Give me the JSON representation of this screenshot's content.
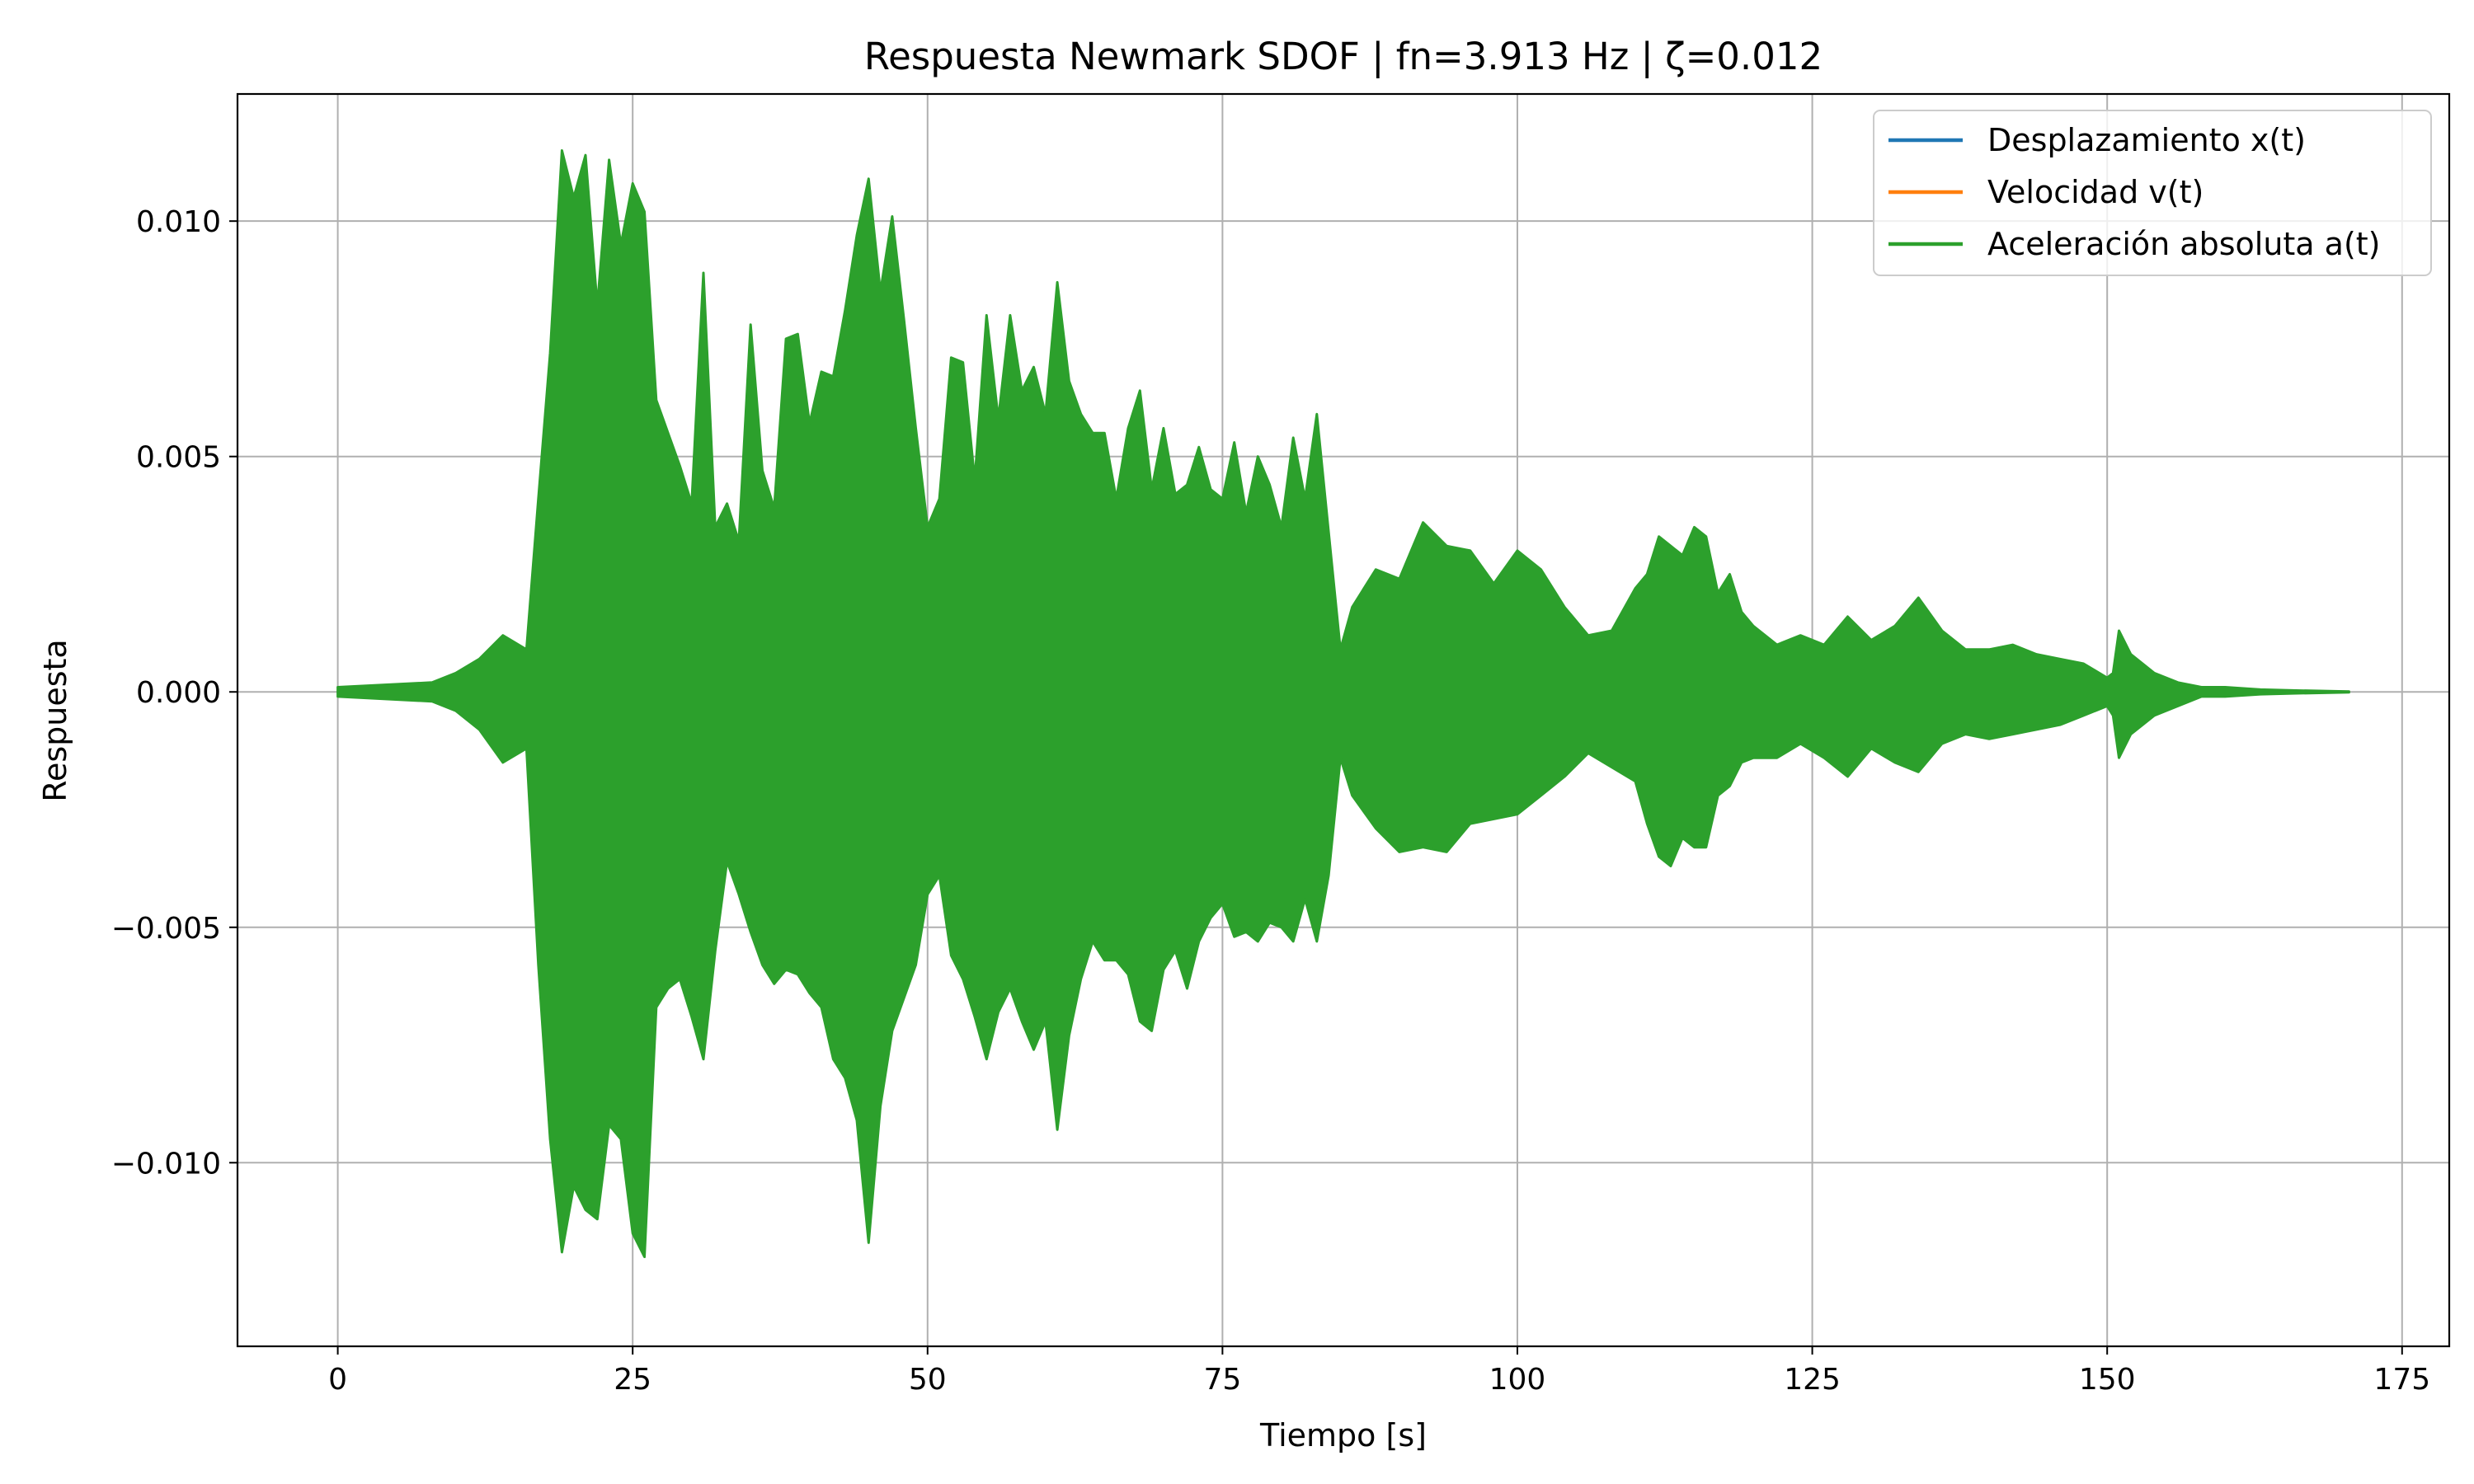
{
  "chart_data": {
    "type": "line",
    "title": "Respuesta Newmark SDOF | fn=3.913 Hz | ζ=0.012",
    "xlabel": "Tiempo [s]",
    "ylabel": "Respuesta",
    "xlim": [
      -8.5,
      179
    ],
    "ylim": [
      -0.0139,
      0.0127
    ],
    "grid": true,
    "legend_position": "upper right",
    "x_ticks": [
      0,
      25,
      50,
      75,
      100,
      125,
      150,
      175
    ],
    "x_tick_labels": [
      "0",
      "25",
      "50",
      "75",
      "100",
      "125",
      "150",
      "175"
    ],
    "y_ticks": [
      -0.01,
      -0.005,
      0.0,
      0.005,
      0.01
    ],
    "y_tick_labels": [
      "−0.010",
      "−0.005",
      "0.000",
      "0.005",
      "0.010"
    ],
    "series": [
      {
        "name": "Desplazamiento x(t)",
        "color": "#1f77b4",
        "visible_in_plot": false,
        "note_hidden": "",
        "x": [
          0,
          170.5
        ],
        "upper": [
          0.0,
          0.0
        ],
        "lower": [
          0.0,
          0.0
        ]
      },
      {
        "name": "Velocidad v(t)",
        "color": "#ff7f0e",
        "visible_in_plot": false,
        "x": [
          0,
          170.5
        ],
        "upper": [
          0.0,
          0.0
        ],
        "lower": [
          0.0,
          0.0
        ]
      },
      {
        "name": "Aceleración absoluta a(t)",
        "color": "#2ca02c",
        "visible_in_plot": true,
        "x": [
          0,
          8,
          10,
          12,
          14,
          16,
          17,
          18,
          19,
          20,
          21,
          22,
          23,
          24,
          25,
          26,
          27,
          28,
          29,
          30,
          31,
          32,
          33,
          34,
          35,
          36,
          37,
          38,
          39,
          40,
          41,
          42,
          43,
          44,
          45,
          46,
          47,
          48,
          49,
          50,
          51,
          52,
          53,
          54,
          55,
          56,
          57,
          58,
          59,
          60,
          61,
          62,
          63,
          64,
          65,
          66,
          67,
          68,
          69,
          70,
          71,
          72,
          73,
          74,
          75,
          76,
          77,
          78,
          79,
          80,
          81,
          82,
          83,
          84,
          85,
          86,
          88,
          90,
          92,
          94,
          96,
          98,
          100,
          102,
          104,
          106,
          108,
          110,
          111,
          112,
          113,
          114,
          115,
          116,
          117,
          118,
          119,
          120,
          122,
          124,
          126,
          128,
          130,
          132,
          134,
          136,
          138,
          140,
          142,
          144,
          146,
          148,
          150,
          150.5,
          151,
          152,
          154,
          156,
          158,
          160,
          163,
          166,
          170.5
        ],
        "upper": [
          0.0001,
          0.0002,
          0.0004,
          0.0007,
          0.0012,
          0.0009,
          0.0041,
          0.0072,
          0.0115,
          0.0105,
          0.0114,
          0.0082,
          0.0113,
          0.0095,
          0.0108,
          0.0102,
          0.0062,
          0.0055,
          0.0048,
          0.004,
          0.0089,
          0.0035,
          0.004,
          0.0032,
          0.0078,
          0.0047,
          0.0039,
          0.0075,
          0.0076,
          0.0057,
          0.0068,
          0.0067,
          0.0081,
          0.0097,
          0.0109,
          0.0085,
          0.0101,
          0.0079,
          0.0056,
          0.0035,
          0.0041,
          0.0071,
          0.007,
          0.0045,
          0.008,
          0.0058,
          0.008,
          0.0064,
          0.0069,
          0.0059,
          0.0087,
          0.0066,
          0.0059,
          0.0055,
          0.0055,
          0.0041,
          0.0056,
          0.0064,
          0.0043,
          0.0056,
          0.0042,
          0.0044,
          0.0052,
          0.0043,
          0.0041,
          0.0053,
          0.0038,
          0.005,
          0.0044,
          0.0035,
          0.0054,
          0.0041,
          0.0059,
          0.0034,
          0.0009,
          0.0018,
          0.0026,
          0.0024,
          0.0036,
          0.0031,
          0.003,
          0.0023,
          0.003,
          0.0026,
          0.0018,
          0.0012,
          0.0013,
          0.0022,
          0.0025,
          0.0033,
          0.0031,
          0.0029,
          0.0035,
          0.0033,
          0.0021,
          0.0025,
          0.0017,
          0.0014,
          0.001,
          0.0012,
          0.001,
          0.0016,
          0.0011,
          0.0014,
          0.002,
          0.0013,
          0.0009,
          0.0009,
          0.001,
          0.0008,
          0.0007,
          0.0006,
          0.0003,
          0.0004,
          0.0013,
          0.0008,
          0.0004,
          0.0002,
          0.0001,
          0.0001,
          5e-05,
          3e-05,
          1e-05
        ],
        "lower": [
          -0.0001,
          -0.0002,
          -0.0004,
          -0.0008,
          -0.0015,
          -0.0012,
          -0.0058,
          -0.0095,
          -0.0119,
          -0.0105,
          -0.011,
          -0.0112,
          -0.0092,
          -0.0095,
          -0.0115,
          -0.012,
          -0.0067,
          -0.0063,
          -0.0061,
          -0.0069,
          -0.0078,
          -0.0055,
          -0.0036,
          -0.0043,
          -0.0051,
          -0.0058,
          -0.0062,
          -0.0059,
          -0.006,
          -0.0064,
          -0.0067,
          -0.0078,
          -0.0082,
          -0.0091,
          -0.0117,
          -0.0088,
          -0.0072,
          -0.0065,
          -0.0058,
          -0.0043,
          -0.0039,
          -0.0056,
          -0.0061,
          -0.0069,
          -0.0078,
          -0.0068,
          -0.0063,
          -0.007,
          -0.0076,
          -0.007,
          -0.0093,
          -0.0073,
          -0.0061,
          -0.0053,
          -0.0057,
          -0.0057,
          -0.006,
          -0.007,
          -0.0072,
          -0.0059,
          -0.0055,
          -0.0063,
          -0.0053,
          -0.0048,
          -0.0045,
          -0.0052,
          -0.0051,
          -0.0053,
          -0.0049,
          -0.005,
          -0.0053,
          -0.0044,
          -0.0053,
          -0.0039,
          -0.0014,
          -0.0022,
          -0.0029,
          -0.0034,
          -0.0033,
          -0.0034,
          -0.0028,
          -0.0027,
          -0.0026,
          -0.0022,
          -0.0018,
          -0.0013,
          -0.0016,
          -0.0019,
          -0.0028,
          -0.0035,
          -0.0037,
          -0.0031,
          -0.0033,
          -0.0033,
          -0.0022,
          -0.002,
          -0.0015,
          -0.0014,
          -0.0014,
          -0.0011,
          -0.0014,
          -0.0018,
          -0.0012,
          -0.0015,
          -0.0017,
          -0.0011,
          -0.0009,
          -0.001,
          -0.0009,
          -0.0008,
          -0.0007,
          -0.0005,
          -0.0003,
          -0.0005,
          -0.0014,
          -0.0009,
          -0.0005,
          -0.0003,
          -0.0001,
          -0.0001,
          -5e-05,
          -3e-05,
          -1e-05
        ]
      }
    ]
  }
}
